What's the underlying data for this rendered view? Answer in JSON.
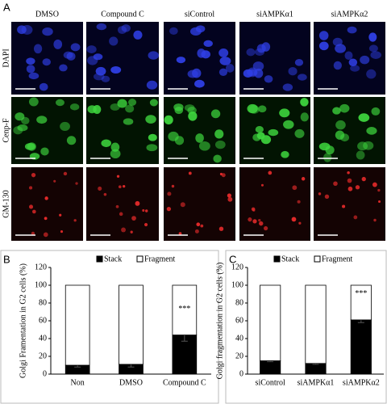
{
  "panel_a": {
    "label": "A",
    "columns": [
      "DMSO",
      "Compound C",
      "siControl",
      "siAMPKα1",
      "siAMPKα2"
    ],
    "rows": [
      "DAPI",
      "Cenp-F",
      "GM-130"
    ]
  },
  "chart_data": [
    {
      "type": "bar",
      "stacked": true,
      "panel_label": "B",
      "y_label": "Golgi Framentation in G2 cells (%)",
      "categories": [
        "Non",
        "DMSO",
        "Compound C"
      ],
      "series": [
        {
          "name": "Stack",
          "color": "#000000",
          "values": [
            10,
            11,
            44
          ],
          "errors": [
            2,
            3,
            7
          ]
        },
        {
          "name": "Fragment",
          "color": "#ffffff",
          "values": [
            90,
            89,
            56
          ]
        }
      ],
      "annotations": [
        {
          "category": 2,
          "text": "***"
        }
      ],
      "ylim": [
        0,
        120
      ],
      "yticks": [
        0,
        20,
        40,
        60,
        80,
        100,
        120
      ],
      "legend": "top"
    },
    {
      "type": "bar",
      "stacked": true,
      "panel_label": "C",
      "y_label": "Golgi fragmentation in G2 cells (%)",
      "categories": [
        "siControl",
        "siAMPKα1",
        "siAMPKα2"
      ],
      "series": [
        {
          "name": "Stack",
          "color": "#000000",
          "values": [
            15,
            12,
            61
          ],
          "errors": [
            1,
            1,
            3
          ]
        },
        {
          "name": "Fragment",
          "color": "#ffffff",
          "values": [
            85,
            88,
            39
          ]
        }
      ],
      "annotations": [
        {
          "category": 2,
          "text": "***"
        }
      ],
      "ylim": [
        0,
        120
      ],
      "yticks": [
        0,
        20,
        40,
        60,
        80,
        100,
        120
      ],
      "legend": "top"
    }
  ]
}
